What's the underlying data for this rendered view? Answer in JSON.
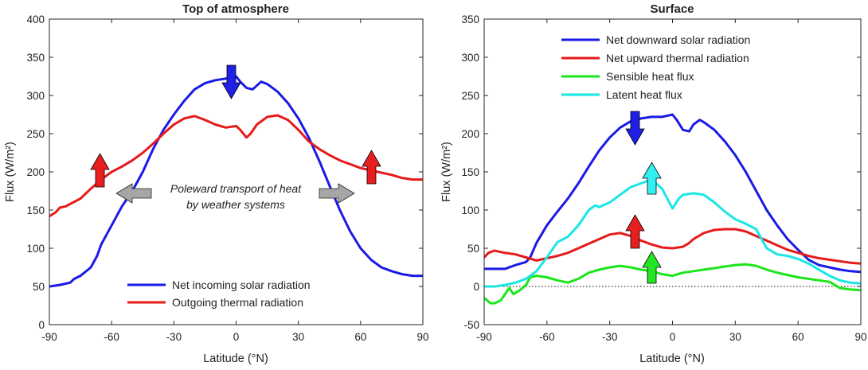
{
  "chart_data": [
    {
      "type": "line",
      "title": "Top of atmosphere",
      "xlabel": "Latitude (°N)",
      "ylabel": "Flux (W/m²)",
      "xlim": [
        -90,
        90
      ],
      "ylim": [
        0,
        400
      ],
      "xticks": [
        -90,
        -60,
        -30,
        0,
        30,
        60,
        90
      ],
      "yticks": [
        0,
        50,
        100,
        150,
        200,
        250,
        300,
        350,
        400
      ],
      "grid": false,
      "legend_position": "bottom-center",
      "annotation": [
        "Poleward transport of heat",
        "by weather systems"
      ],
      "series": [
        {
          "name": "Net incoming solar radiation",
          "color": "#1a1ae6",
          "x": [
            -90,
            -85,
            -80,
            -78,
            -75,
            -70,
            -67,
            -65,
            -60,
            -55,
            -50,
            -45,
            -40,
            -35,
            -30,
            -25,
            -20,
            -15,
            -10,
            -5,
            -3,
            0,
            2,
            5,
            8,
            12,
            15,
            20,
            25,
            30,
            35,
            40,
            45,
            50,
            55,
            60,
            65,
            70,
            75,
            80,
            85,
            90
          ],
          "y": [
            50,
            52,
            55,
            60,
            64,
            75,
            90,
            105,
            130,
            155,
            175,
            200,
            230,
            255,
            275,
            293,
            308,
            316,
            320,
            322,
            324,
            325,
            318,
            310,
            308,
            318,
            315,
            305,
            290,
            270,
            245,
            215,
            182,
            150,
            122,
            100,
            85,
            75,
            70,
            66,
            64,
            64
          ]
        },
        {
          "name": "Outgoing thermal radiation",
          "color": "#e61a1a",
          "x": [
            -90,
            -87,
            -85,
            -82,
            -80,
            -75,
            -70,
            -65,
            -60,
            -55,
            -50,
            -45,
            -40,
            -35,
            -30,
            -25,
            -20,
            -15,
            -10,
            -5,
            0,
            2,
            5,
            7,
            10,
            15,
            20,
            25,
            30,
            35,
            40,
            45,
            50,
            55,
            60,
            65,
            70,
            75,
            80,
            85,
            90
          ],
          "y": [
            142,
            147,
            153,
            155,
            158,
            165,
            178,
            190,
            200,
            207,
            215,
            225,
            237,
            250,
            262,
            270,
            273,
            268,
            262,
            258,
            260,
            255,
            245,
            250,
            262,
            272,
            274,
            268,
            255,
            240,
            230,
            222,
            215,
            210,
            205,
            202,
            199,
            196,
            192,
            190,
            190
          ]
        }
      ]
    },
    {
      "type": "line",
      "title": "Surface",
      "xlabel": "Latitude (°N)",
      "ylabel": "Flux (W/m²)",
      "xlim": [
        -90,
        90
      ],
      "ylim": [
        -50,
        350
      ],
      "xticks": [
        -90,
        -60,
        -30,
        0,
        30,
        60,
        90
      ],
      "yticks": [
        -50,
        0,
        50,
        100,
        150,
        200,
        250,
        300,
        350
      ],
      "grid": false,
      "legend_position": "top-center",
      "zero_line": "dotted",
      "series": [
        {
          "name": "Net downward solar radiation",
          "color": "#1a1ae6",
          "x": [
            -90,
            -85,
            -80,
            -75,
            -70,
            -68,
            -65,
            -60,
            -55,
            -50,
            -45,
            -40,
            -35,
            -30,
            -25,
            -20,
            -15,
            -10,
            -5,
            0,
            2,
            5,
            8,
            10,
            13,
            15,
            20,
            25,
            30,
            35,
            40,
            45,
            50,
            55,
            60,
            65,
            70,
            75,
            80,
            85,
            90
          ],
          "y": [
            23,
            23,
            23,
            28,
            32,
            38,
            57,
            80,
            98,
            115,
            135,
            157,
            178,
            195,
            208,
            216,
            220,
            222,
            222,
            225,
            218,
            205,
            203,
            212,
            218,
            215,
            205,
            190,
            172,
            150,
            125,
            100,
            80,
            62,
            48,
            35,
            28,
            25,
            22,
            20,
            19
          ]
        },
        {
          "name": "Net upward thermal radiation",
          "color": "#e61a1a",
          "x": [
            -90,
            -88,
            -85,
            -82,
            -80,
            -75,
            -70,
            -65,
            -60,
            -55,
            -50,
            -45,
            -40,
            -35,
            -30,
            -25,
            -20,
            -15,
            -10,
            -5,
            0,
            5,
            8,
            10,
            15,
            20,
            25,
            30,
            35,
            40,
            45,
            50,
            55,
            60,
            65,
            70,
            75,
            80,
            85,
            90
          ],
          "y": [
            38,
            44,
            47,
            45,
            44,
            42,
            38,
            34,
            37,
            40,
            44,
            50,
            56,
            62,
            68,
            70,
            66,
            60,
            55,
            51,
            50,
            52,
            57,
            62,
            70,
            74,
            75,
            75,
            72,
            66,
            60,
            54,
            48,
            44,
            40,
            37,
            35,
            33,
            31,
            30
          ]
        },
        {
          "name": "Sensible heat flux",
          "color": "#1ae61a",
          "x": [
            -90,
            -87,
            -85,
            -82,
            -80,
            -78,
            -76,
            -73,
            -70,
            -68,
            -65,
            -60,
            -55,
            -50,
            -45,
            -40,
            -35,
            -30,
            -25,
            -20,
            -15,
            -10,
            -5,
            0,
            5,
            10,
            15,
            20,
            25,
            30,
            35,
            40,
            45,
            50,
            55,
            60,
            65,
            70,
            75,
            80,
            85,
            90
          ],
          "y": [
            -15,
            -22,
            -22,
            -18,
            -10,
            -2,
            -10,
            -5,
            2,
            12,
            14,
            12,
            8,
            5,
            10,
            18,
            22,
            25,
            27,
            25,
            22,
            20,
            16,
            14,
            18,
            20,
            22,
            24,
            26,
            28,
            29,
            27,
            22,
            18,
            15,
            12,
            10,
            8,
            6,
            -2,
            -4,
            -5
          ]
        },
        {
          "name": "Latent heat flux",
          "color": "#1ae6e6",
          "x": [
            -90,
            -85,
            -80,
            -75,
            -70,
            -65,
            -60,
            -55,
            -50,
            -45,
            -40,
            -37,
            -35,
            -30,
            -25,
            -20,
            -15,
            -10,
            -5,
            0,
            3,
            5,
            10,
            15,
            20,
            25,
            30,
            35,
            40,
            45,
            50,
            55,
            60,
            65,
            70,
            75,
            80,
            85,
            90
          ],
          "y": [
            0,
            0,
            2,
            5,
            10,
            20,
            38,
            58,
            65,
            80,
            100,
            106,
            104,
            110,
            120,
            130,
            135,
            140,
            128,
            102,
            115,
            120,
            122,
            120,
            110,
            98,
            88,
            82,
            75,
            50,
            42,
            40,
            36,
            30,
            22,
            14,
            8,
            5,
            4
          ]
        }
      ]
    }
  ]
}
